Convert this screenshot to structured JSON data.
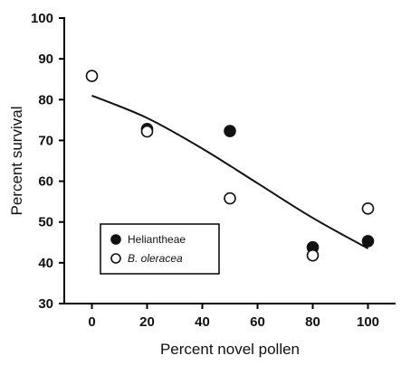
{
  "chart_data": {
    "type": "scatter",
    "title": "",
    "xlabel": "Percent novel pollen",
    "ylabel": "Percent survival",
    "xlim": [
      -10,
      110
    ],
    "ylim": [
      30,
      100
    ],
    "xticks": [
      0,
      20,
      40,
      60,
      80,
      100
    ],
    "yticks": [
      30,
      40,
      50,
      60,
      70,
      80,
      90,
      100
    ],
    "grid": false,
    "legend_position": "bottom-left",
    "series": [
      {
        "name": "Heliantheae",
        "marker": "filled-circle",
        "color": "#111111",
        "points": [
          {
            "x": 20,
            "y": 72.8
          },
          {
            "x": 50,
            "y": 72.3
          },
          {
            "x": 80,
            "y": 43.8
          },
          {
            "x": 100,
            "y": 45.3
          }
        ]
      },
      {
        "name": "B. oleracea",
        "marker": "open-circle",
        "color": "#111111",
        "points": [
          {
            "x": 0,
            "y": 85.8
          },
          {
            "x": 20,
            "y": 72.2
          },
          {
            "x": 50,
            "y": 55.8
          },
          {
            "x": 80,
            "y": 41.8
          },
          {
            "x": 100,
            "y": 53.3
          }
        ]
      }
    ],
    "fit_curve": {
      "points": [
        {
          "x": 0,
          "y": 81.0
        },
        {
          "x": 20,
          "y": 75.5
        },
        {
          "x": 40,
          "y": 68.0
        },
        {
          "x": 60,
          "y": 59.5
        },
        {
          "x": 80,
          "y": 51.0
        },
        {
          "x": 100,
          "y": 43.5
        }
      ]
    }
  }
}
